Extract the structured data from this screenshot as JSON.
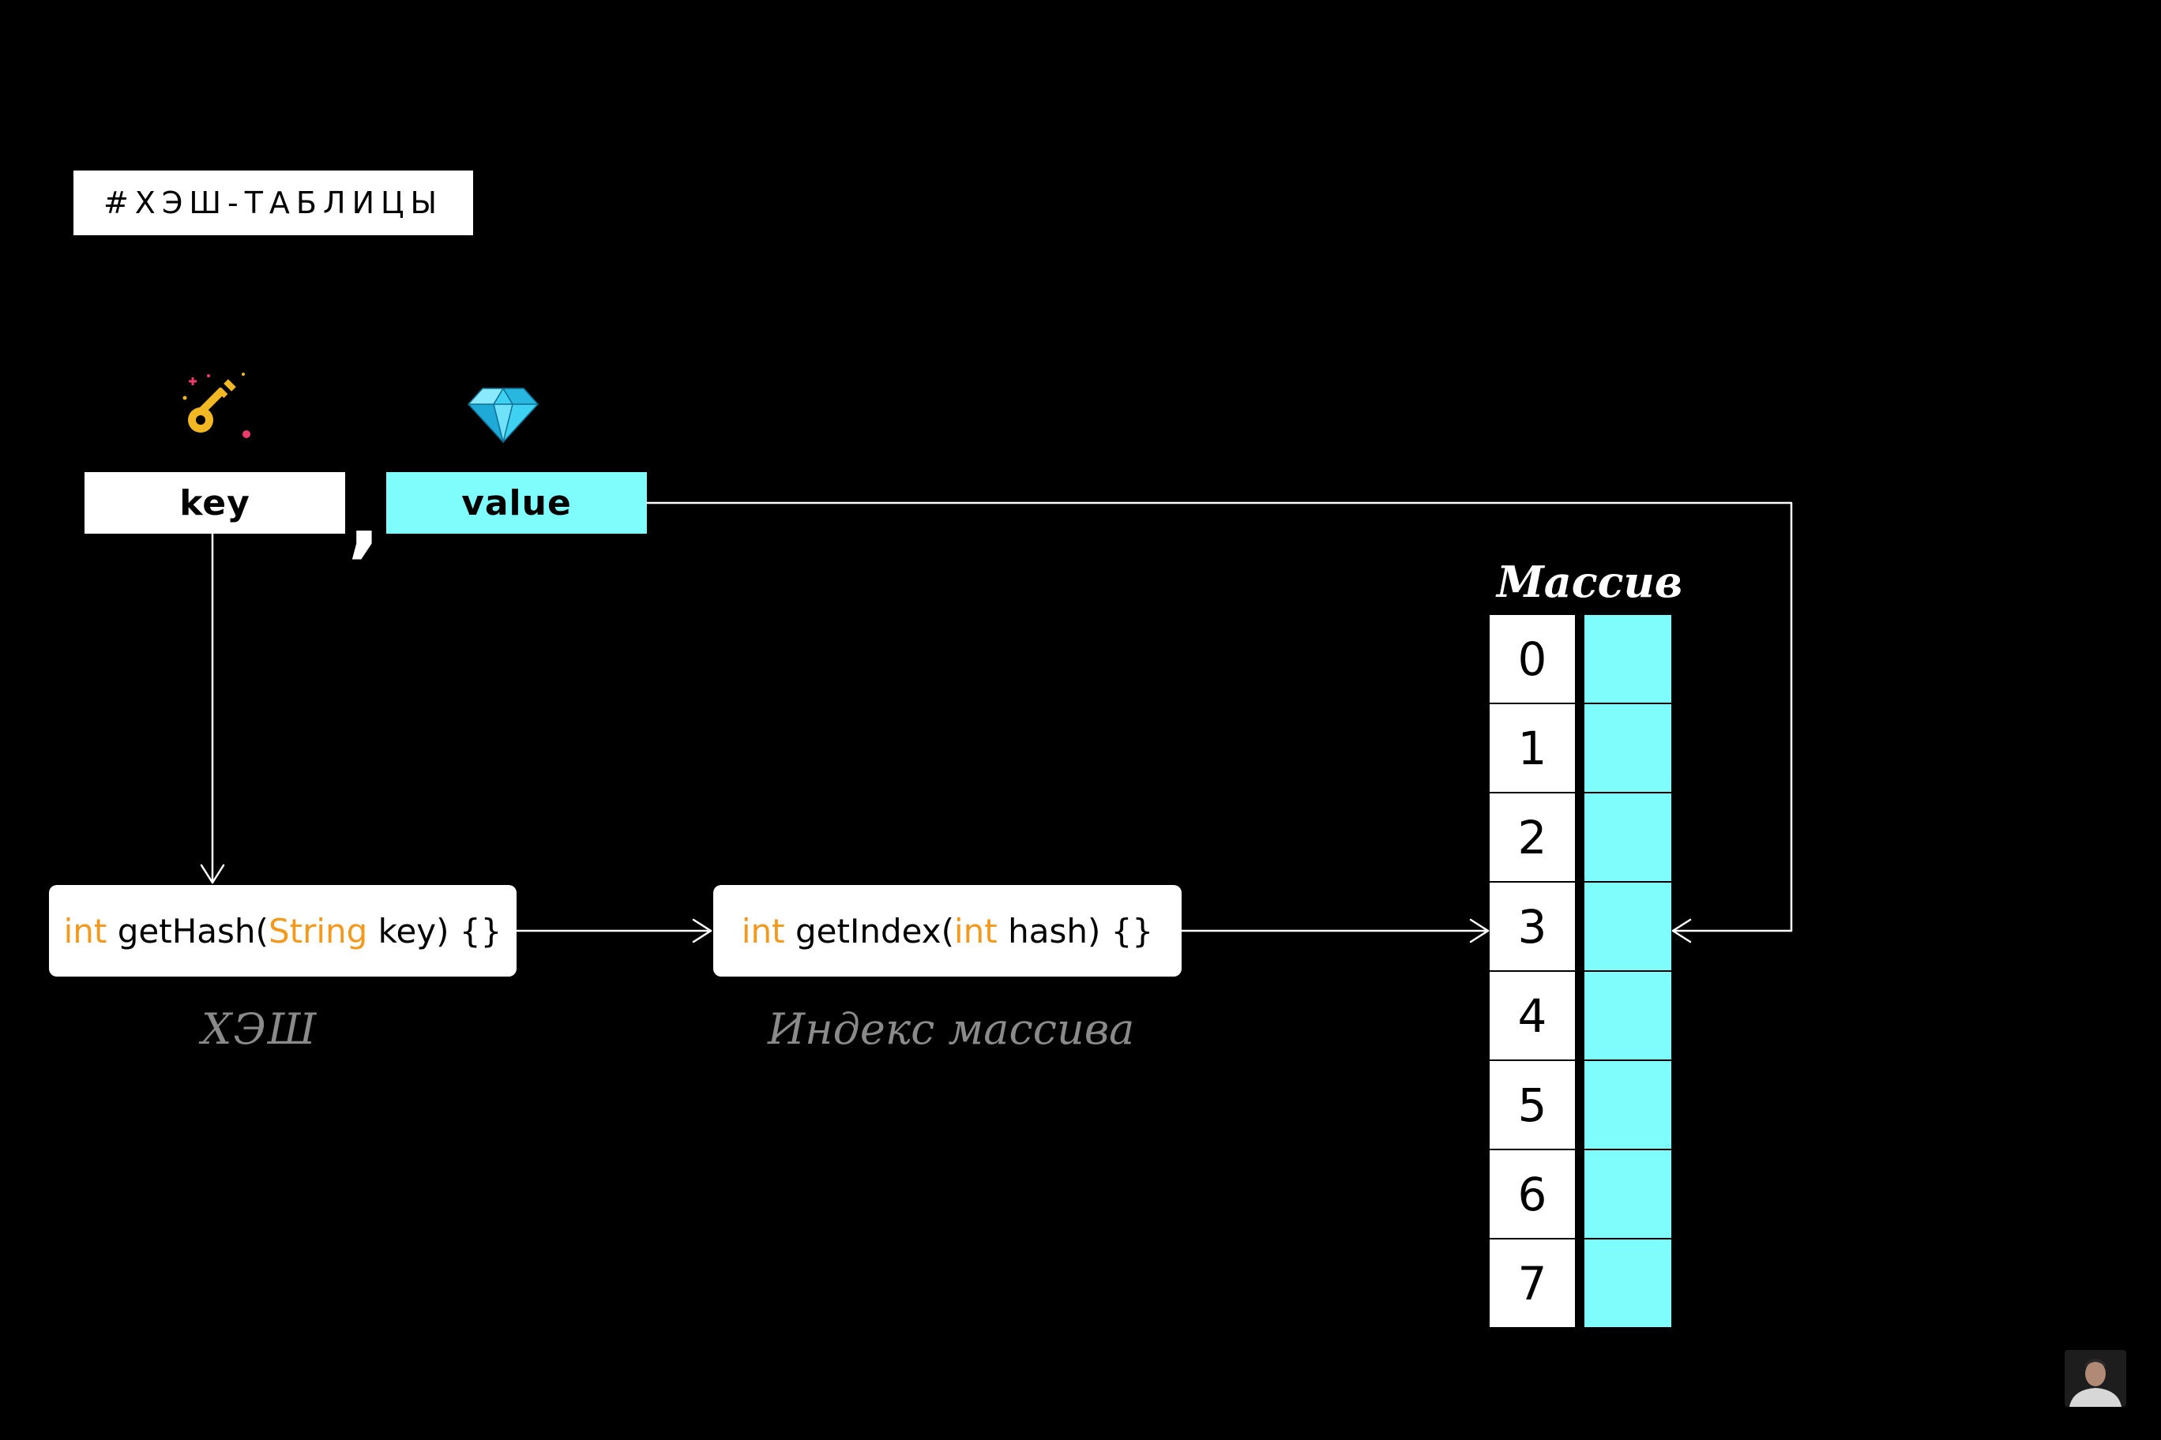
{
  "tag": "#ХЭШ-ТАБЛИЦЫ",
  "pair": {
    "key_label": "key",
    "value_label": "value",
    "comma": ",",
    "key_icon": "key-icon",
    "value_icon": "diamond-icon"
  },
  "functions": {
    "hash": {
      "kw1": "int",
      "name": " getHash(",
      "kw2": "String",
      "rest": " key) {}"
    },
    "index": {
      "kw1": "int",
      "name": " getIndex(",
      "kw2": "int",
      "rest": " hash) {}"
    }
  },
  "captions": {
    "hash": "ХЭШ",
    "index": "Индекс массива",
    "array": "Массив"
  },
  "array": {
    "indices": [
      "0",
      "1",
      "2",
      "3",
      "4",
      "5",
      "6",
      "7"
    ]
  },
  "colors": {
    "background": "#000000",
    "value_cyan": "#7ffdfd",
    "keyword_orange": "#f39a1e",
    "caption_gray": "#8a8a8a",
    "line_white": "#ffffff"
  }
}
